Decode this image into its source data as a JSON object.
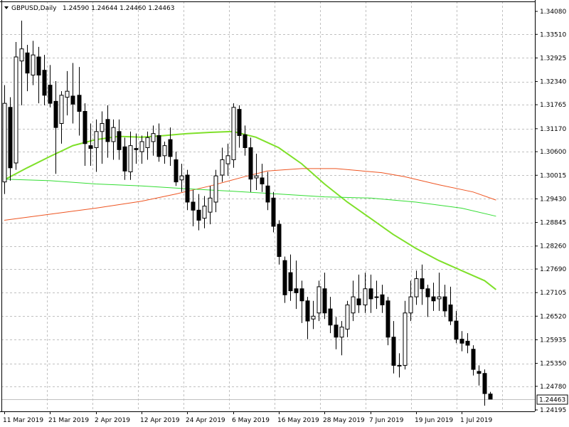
{
  "header": {
    "symbol_label": "GBPUSD,Daily",
    "ohlc_label": "1.24590 1.24644 1.24460 1.24463",
    "dropdown_icon": "triangle-down-icon"
  },
  "chart_data": {
    "type": "candlestick",
    "title": "GBPUSD,Daily",
    "ylim": [
      1.2415,
      1.341
    ],
    "grid": true,
    "current_price": "1.24463",
    "y_ticks": [
      "1.34080",
      "1.33510",
      "1.32925",
      "1.32340",
      "1.31765",
      "1.31170",
      "1.30600",
      "1.30015",
      "1.29430",
      "1.28845",
      "1.28260",
      "1.27690",
      "1.27105",
      "1.26520",
      "1.25935",
      "1.25350",
      "1.24780",
      "1.24195"
    ],
    "y_tick_values": [
      1.3408,
      1.3351,
      1.32925,
      1.3234,
      1.31765,
      1.3117,
      1.306,
      1.30015,
      1.2943,
      1.28845,
      1.2826,
      1.2769,
      1.27105,
      1.2652,
      1.25935,
      1.2535,
      1.2478,
      1.24195
    ],
    "x_tick_labels": [
      "11 Mar 2019",
      "21 Mar 2019",
      "2 Apr 2019",
      "12 Apr 2019",
      "24 Apr 2019",
      "6 May 2019",
      "16 May 2019",
      "28 May 2019",
      "7 Jun 2019",
      "19 Jun 2019",
      "1 Jul 2019"
    ],
    "x_tick_bar_index": [
      0,
      8,
      16,
      24,
      32,
      40,
      48,
      56,
      64,
      72,
      80
    ],
    "candles": [
      {
        "o": 1.2985,
        "h": 1.3225,
        "l": 1.2955,
        "c": 1.318
      },
      {
        "o": 1.317,
        "h": 1.3195,
        "l": 1.2988,
        "c": 1.302
      },
      {
        "o": 1.3032,
        "h": 1.3332,
        "l": 1.3015,
        "c": 1.3295
      },
      {
        "o": 1.3285,
        "h": 1.3385,
        "l": 1.3175,
        "c": 1.3315
      },
      {
        "o": 1.3305,
        "h": 1.3325,
        "l": 1.321,
        "c": 1.3255
      },
      {
        "o": 1.325,
        "h": 1.3335,
        "l": 1.3225,
        "c": 1.33
      },
      {
        "o": 1.3295,
        "h": 1.332,
        "l": 1.318,
        "c": 1.325
      },
      {
        "o": 1.3262,
        "h": 1.33,
        "l": 1.3175,
        "c": 1.32
      },
      {
        "o": 1.3225,
        "h": 1.3275,
        "l": 1.317,
        "c": 1.318
      },
      {
        "o": 1.3185,
        "h": 1.3235,
        "l": 1.3005,
        "c": 1.312
      },
      {
        "o": 1.313,
        "h": 1.321,
        "l": 1.308,
        "c": 1.32
      },
      {
        "o": 1.3195,
        "h": 1.326,
        "l": 1.315,
        "c": 1.321
      },
      {
        "o": 1.3198,
        "h": 1.328,
        "l": 1.313,
        "c": 1.3178
      },
      {
        "o": 1.32,
        "h": 1.327,
        "l": 1.31,
        "c": 1.316
      },
      {
        "o": 1.316,
        "h": 1.318,
        "l": 1.3025,
        "c": 1.308
      },
      {
        "o": 1.3075,
        "h": 1.313,
        "l": 1.3025,
        "c": 1.3068
      },
      {
        "o": 1.307,
        "h": 1.314,
        "l": 1.301,
        "c": 1.311
      },
      {
        "o": 1.311,
        "h": 1.316,
        "l": 1.303,
        "c": 1.313
      },
      {
        "o": 1.314,
        "h": 1.3175,
        "l": 1.3045,
        "c": 1.3085
      },
      {
        "o": 1.3085,
        "h": 1.314,
        "l": 1.304,
        "c": 1.312
      },
      {
        "o": 1.311,
        "h": 1.314,
        "l": 1.304,
        "c": 1.3065
      },
      {
        "o": 1.3072,
        "h": 1.3095,
        "l": 1.299,
        "c": 1.3012
      },
      {
        "o": 1.301,
        "h": 1.311,
        "l": 1.299,
        "c": 1.3075
      },
      {
        "o": 1.3068,
        "h": 1.3105,
        "l": 1.303,
        "c": 1.3065
      },
      {
        "o": 1.306,
        "h": 1.31,
        "l": 1.303,
        "c": 1.3085
      },
      {
        "o": 1.307,
        "h": 1.311,
        "l": 1.304,
        "c": 1.3095
      },
      {
        "o": 1.3085,
        "h": 1.3125,
        "l": 1.305,
        "c": 1.3105
      },
      {
        "o": 1.31,
        "h": 1.313,
        "l": 1.3035,
        "c": 1.3048
      },
      {
        "o": 1.305,
        "h": 1.3085,
        "l": 1.303,
        "c": 1.3075
      },
      {
        "o": 1.309,
        "h": 1.312,
        "l": 1.3025,
        "c": 1.3048
      },
      {
        "o": 1.304,
        "h": 1.306,
        "l": 1.2975,
        "c": 1.2985
      },
      {
        "o": 1.299,
        "h": 1.303,
        "l": 1.296,
        "c": 1.3
      },
      {
        "o": 1.3002,
        "h": 1.3015,
        "l": 1.2915,
        "c": 1.2935
      },
      {
        "o": 1.2935,
        "h": 1.2965,
        "l": 1.2875,
        "c": 1.2915
      },
      {
        "o": 1.2915,
        "h": 1.2955,
        "l": 1.2865,
        "c": 1.289
      },
      {
        "o": 1.2895,
        "h": 1.295,
        "l": 1.287,
        "c": 1.2925
      },
      {
        "o": 1.291,
        "h": 1.2975,
        "l": 1.288,
        "c": 1.2945
      },
      {
        "o": 1.2935,
        "h": 1.3015,
        "l": 1.291,
        "c": 1.3
      },
      {
        "o": 1.3002,
        "h": 1.307,
        "l": 1.2985,
        "c": 1.304
      },
      {
        "o": 1.303,
        "h": 1.308,
        "l": 1.3,
        "c": 1.305
      },
      {
        "o": 1.304,
        "h": 1.318,
        "l": 1.302,
        "c": 1.317
      },
      {
        "o": 1.3165,
        "h": 1.3175,
        "l": 1.307,
        "c": 1.31
      },
      {
        "o": 1.3102,
        "h": 1.3125,
        "l": 1.305,
        "c": 1.307
      },
      {
        "o": 1.307,
        "h": 1.3095,
        "l": 1.296,
        "c": 1.2992
      },
      {
        "o": 1.2995,
        "h": 1.3055,
        "l": 1.2965,
        "c": 1.3
      },
      {
        "o": 1.2995,
        "h": 1.303,
        "l": 1.296,
        "c": 1.298
      },
      {
        "o": 1.2975,
        "h": 1.301,
        "l": 1.2915,
        "c": 1.2935
      },
      {
        "o": 1.2945,
        "h": 1.296,
        "l": 1.286,
        "c": 1.2875
      },
      {
        "o": 1.288,
        "h": 1.289,
        "l": 1.278,
        "c": 1.28
      },
      {
        "o": 1.279,
        "h": 1.28,
        "l": 1.2685,
        "c": 1.2705
      },
      {
        "o": 1.276,
        "h": 1.2805,
        "l": 1.269,
        "c": 1.2715
      },
      {
        "o": 1.272,
        "h": 1.279,
        "l": 1.267,
        "c": 1.271
      },
      {
        "o": 1.272,
        "h": 1.274,
        "l": 1.2635,
        "c": 1.269
      },
      {
        "o": 1.269,
        "h": 1.27,
        "l": 1.2595,
        "c": 1.264
      },
      {
        "o": 1.2645,
        "h": 1.269,
        "l": 1.262,
        "c": 1.2652
      },
      {
        "o": 1.266,
        "h": 1.274,
        "l": 1.264,
        "c": 1.2725
      },
      {
        "o": 1.272,
        "h": 1.276,
        "l": 1.2645,
        "c": 1.266
      },
      {
        "o": 1.267,
        "h": 1.27,
        "l": 1.261,
        "c": 1.263
      },
      {
        "o": 1.263,
        "h": 1.265,
        "l": 1.257,
        "c": 1.26
      },
      {
        "o": 1.26,
        "h": 1.264,
        "l": 1.2555,
        "c": 1.2625
      },
      {
        "o": 1.262,
        "h": 1.269,
        "l": 1.26,
        "c": 1.268
      },
      {
        "o": 1.266,
        "h": 1.274,
        "l": 1.264,
        "c": 1.27
      },
      {
        "o": 1.2695,
        "h": 1.2755,
        "l": 1.266,
        "c": 1.268
      },
      {
        "o": 1.268,
        "h": 1.276,
        "l": 1.266,
        "c": 1.272
      },
      {
        "o": 1.272,
        "h": 1.2755,
        "l": 1.266,
        "c": 1.2695
      },
      {
        "o": 1.27,
        "h": 1.274,
        "l": 1.267,
        "c": 1.27
      },
      {
        "o": 1.2705,
        "h": 1.273,
        "l": 1.266,
        "c": 1.268
      },
      {
        "o": 1.269,
        "h": 1.27,
        "l": 1.258,
        "c": 1.26
      },
      {
        "o": 1.26,
        "h": 1.264,
        "l": 1.251,
        "c": 1.253
      },
      {
        "o": 1.253,
        "h": 1.256,
        "l": 1.25,
        "c": 1.253
      },
      {
        "o": 1.253,
        "h": 1.269,
        "l": 1.252,
        "c": 1.266
      },
      {
        "o": 1.266,
        "h": 1.274,
        "l": 1.264,
        "c": 1.27
      },
      {
        "o": 1.27,
        "h": 1.2765,
        "l": 1.268,
        "c": 1.2745
      },
      {
        "o": 1.2745,
        "h": 1.278,
        "l": 1.268,
        "c": 1.272
      },
      {
        "o": 1.272,
        "h": 1.273,
        "l": 1.265,
        "c": 1.27
      },
      {
        "o": 1.27,
        "h": 1.2735,
        "l": 1.2665,
        "c": 1.269
      },
      {
        "o": 1.2695,
        "h": 1.276,
        "l": 1.2665,
        "c": 1.27
      },
      {
        "o": 1.27,
        "h": 1.273,
        "l": 1.265,
        "c": 1.2665
      },
      {
        "o": 1.268,
        "h": 1.2725,
        "l": 1.263,
        "c": 1.264
      },
      {
        "o": 1.264,
        "h": 1.2665,
        "l": 1.2585,
        "c": 1.2595
      },
      {
        "o": 1.2595,
        "h": 1.2615,
        "l": 1.2565,
        "c": 1.2585
      },
      {
        "o": 1.259,
        "h": 1.261,
        "l": 1.256,
        "c": 1.258
      },
      {
        "o": 1.257,
        "h": 1.258,
        "l": 1.2505,
        "c": 1.252
      },
      {
        "o": 1.2515,
        "h": 1.253,
        "l": 1.248,
        "c": 1.251
      },
      {
        "o": 1.251,
        "h": 1.252,
        "l": 1.243,
        "c": 1.246
      },
      {
        "o": 1.2459,
        "h": 1.24644,
        "l": 1.2446,
        "c": 1.24463
      }
    ],
    "ma_series": [
      {
        "color": "#7fe02a",
        "width": 2,
        "values": [
          [
            0,
            1.299
          ],
          [
            4,
            1.302
          ],
          [
            8,
            1.3048
          ],
          [
            12,
            1.3075
          ],
          [
            16,
            1.309
          ],
          [
            20,
            1.3098
          ],
          [
            24,
            1.3096
          ],
          [
            28,
            1.31
          ],
          [
            32,
            1.3105
          ],
          [
            36,
            1.3108
          ],
          [
            40,
            1.311
          ],
          [
            44,
            1.3096
          ],
          [
            48,
            1.307
          ],
          [
            52,
            1.303
          ],
          [
            56,
            1.298
          ],
          [
            60,
            1.2935
          ],
          [
            64,
            1.2895
          ],
          [
            68,
            1.2855
          ],
          [
            72,
            1.282
          ],
          [
            76,
            1.279
          ],
          [
            80,
            1.2765
          ],
          [
            84,
            1.274
          ],
          [
            86,
            1.2718
          ]
        ]
      },
      {
        "color": "#ee5522",
        "width": 1,
        "values": [
          [
            0,
            1.289
          ],
          [
            8,
            1.2905
          ],
          [
            16,
            1.292
          ],
          [
            24,
            1.2937
          ],
          [
            30,
            1.2955
          ],
          [
            36,
            1.2975
          ],
          [
            42,
            1.2998
          ],
          [
            46,
            1.3012
          ],
          [
            52,
            1.3018
          ],
          [
            58,
            1.3018
          ],
          [
            66,
            1.3008
          ],
          [
            70,
            1.2998
          ],
          [
            76,
            1.2978
          ],
          [
            82,
            1.296
          ],
          [
            86,
            1.294
          ]
        ]
      },
      {
        "color": "#33dd33",
        "width": 1,
        "values": [
          [
            0,
            1.2992
          ],
          [
            8,
            1.2988
          ],
          [
            16,
            1.298
          ],
          [
            24,
            1.2975
          ],
          [
            32,
            1.2968
          ],
          [
            40,
            1.2962
          ],
          [
            48,
            1.2955
          ],
          [
            56,
            1.2948
          ],
          [
            64,
            1.2945
          ],
          [
            72,
            1.2935
          ],
          [
            80,
            1.292
          ],
          [
            86,
            1.29
          ]
        ]
      }
    ]
  },
  "colors": {
    "background": "#ffffff",
    "axis": "#000000",
    "grid": "#c0c0c0",
    "candle_bull_fill": "#ffffff",
    "candle_bear_fill": "#000000",
    "candle_outline": "#000000",
    "price_line": "#c0c0c0"
  }
}
